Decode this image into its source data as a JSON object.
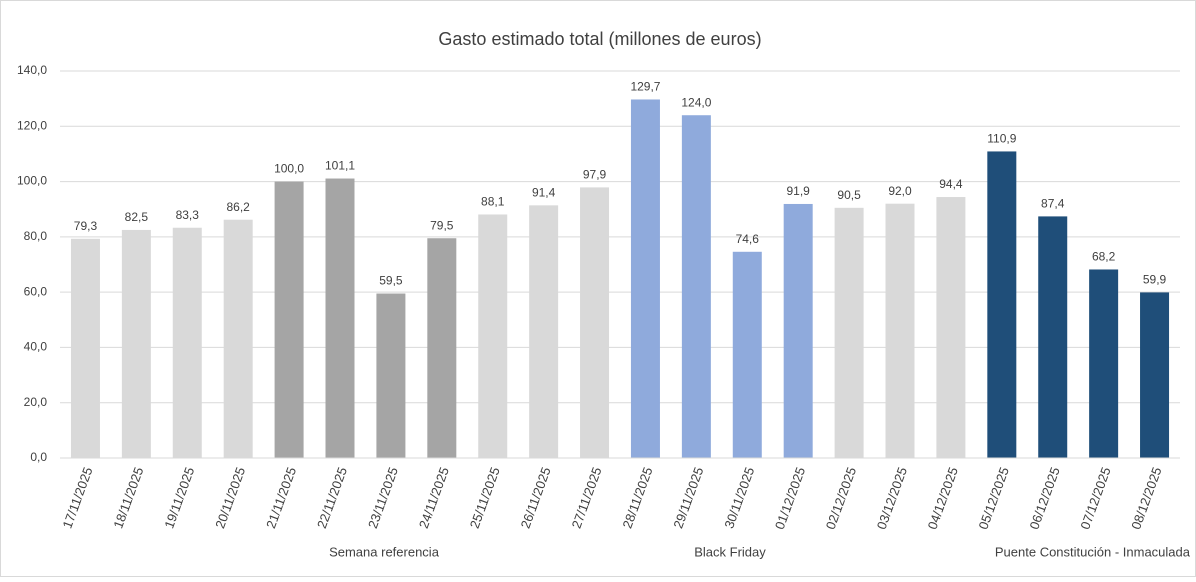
{
  "chart_data": {
    "type": "bar",
    "title": "Gasto estimado total (millones de euros)",
    "categories": [
      "17/11/2025",
      "18/11/2025",
      "19/11/2025",
      "20/11/2025",
      "21/11/2025",
      "22/11/2025",
      "23/11/2025",
      "24/11/2025",
      "25/11/2025",
      "26/11/2025",
      "27/11/2025",
      "28/11/2025",
      "29/11/2025",
      "30/11/2025",
      "01/12/2025",
      "02/12/2025",
      "03/12/2025",
      "04/12/2025",
      "05/12/2025",
      "06/12/2025",
      "07/12/2025",
      "08/12/2025"
    ],
    "values": [
      79.3,
      82.5,
      83.3,
      86.2,
      100.0,
      101.1,
      59.5,
      79.5,
      88.1,
      91.4,
      97.9,
      129.7,
      124.0,
      74.6,
      91.9,
      90.5,
      92.0,
      94.4,
      110.9,
      87.4,
      68.2,
      59.9
    ],
    "value_labels": [
      "79,3",
      "82,5",
      "83,3",
      "86,2",
      "100,0",
      "101,1",
      "59,5",
      "79,5",
      "88,1",
      "91,4",
      "97,9",
      "129,7",
      "124,0",
      "74,6",
      "91,9",
      "90,5",
      "92,0",
      "94,4",
      "110,9",
      "87,4",
      "68,2",
      "59,9"
    ],
    "colors": [
      "#d9d9d9",
      "#d9d9d9",
      "#d9d9d9",
      "#d9d9d9",
      "#a5a5a5",
      "#a5a5a5",
      "#a5a5a5",
      "#a5a5a5",
      "#d9d9d9",
      "#d9d9d9",
      "#d9d9d9",
      "#8faadc",
      "#8faadc",
      "#8faadc",
      "#8faadc",
      "#d9d9d9",
      "#d9d9d9",
      "#d9d9d9",
      "#1f4e79",
      "#1f4e79",
      "#1f4e79",
      "#1f4e79"
    ],
    "ylim": [
      0,
      140
    ],
    "yticks": [
      {
        "value": 0,
        "label": "0,0"
      },
      {
        "value": 20,
        "label": "20,0"
      },
      {
        "value": 40,
        "label": "40,0"
      },
      {
        "value": 60,
        "label": "60,0"
      },
      {
        "value": 80,
        "label": "80,0"
      },
      {
        "value": 100,
        "label": "100,0"
      },
      {
        "value": 120,
        "label": "120,0"
      },
      {
        "value": 140,
        "label": "140,0"
      }
    ],
    "grid": true,
    "annotations": [
      "Semana referencia",
      "Black Friday",
      "Puente Constitución - Inmaculada"
    ]
  }
}
